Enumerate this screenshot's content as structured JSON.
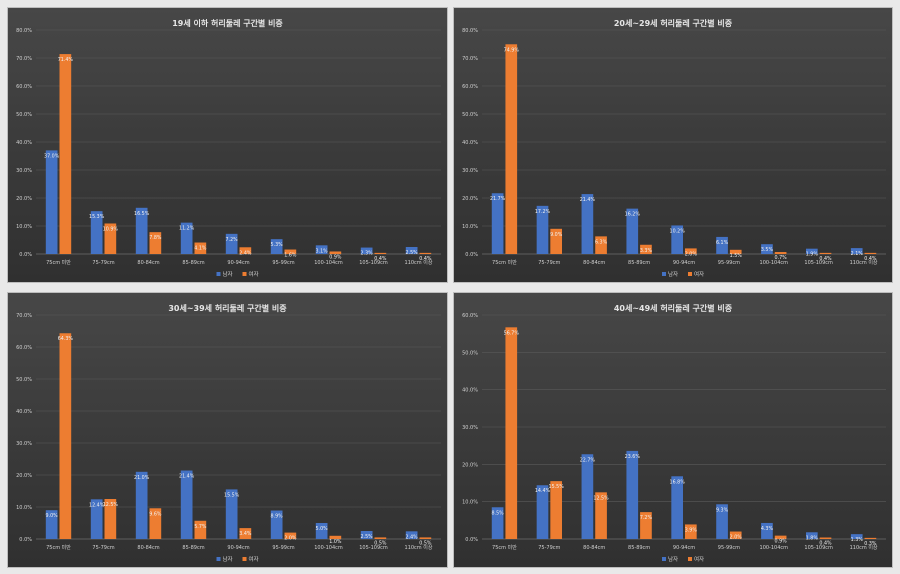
{
  "colors": {
    "male": "#4472c4",
    "female": "#ed7d31",
    "axis_text": "#d0d0d0",
    "grid": "#5a5a5a"
  },
  "chart_data": [
    {
      "type": "bar",
      "title": "19세 이하 허리둘레 구간별 비중",
      "categories": [
        "75cm 미만",
        "75-79cm",
        "80-84cm",
        "85-89cm",
        "90-94cm",
        "95-99cm",
        "100-104cm",
        "105-109cm",
        "110cm 이상"
      ],
      "series": [
        {
          "name": "남자",
          "values": [
            37.0,
            15.3,
            16.5,
            11.2,
            7.2,
            5.3,
            3.1,
            2.3,
            2.5
          ],
          "labels": [
            "37.0%",
            "15.3%",
            "16.5%",
            "11.2%",
            "7.2%",
            "5.3%",
            "3.1%",
            "2.3%",
            "2.5%"
          ]
        },
        {
          "name": "여자",
          "values": [
            71.4,
            10.9,
            7.8,
            4.1,
            2.4,
            1.6,
            0.9,
            0.4,
            0.4
          ],
          "labels": [
            "71.4%",
            "10.9%",
            "7.8%",
            "4.1%",
            "2.4%",
            "1.6%",
            "0.9%",
            "0.4%",
            "0.4%"
          ]
        }
      ],
      "yticks": [
        "0.0%",
        "10.0%",
        "20.0%",
        "30.0%",
        "40.0%",
        "50.0%",
        "60.0%",
        "70.0%",
        "80.0%"
      ],
      "ylim": [
        0,
        80
      ],
      "legend": "bottom-center"
    },
    {
      "type": "bar",
      "title": "20세~29세 허리둘레 구간별 비중",
      "categories": [
        "75cm 미만",
        "75-79cm",
        "80-84cm",
        "85-89cm",
        "90-94cm",
        "95-99cm",
        "100-104cm",
        "105-109cm",
        "110cm 이상"
      ],
      "series": [
        {
          "name": "남자",
          "values": [
            21.7,
            17.2,
            21.4,
            16.2,
            10.2,
            6.1,
            3.5,
            1.9,
            2.1
          ],
          "labels": [
            "21.7%",
            "17.2%",
            "21.4%",
            "16.2%",
            "10.2%",
            "6.1%",
            "3.5%",
            "1.9%",
            "2.1%"
          ]
        },
        {
          "name": "여자",
          "values": [
            74.9,
            9.0,
            6.3,
            3.3,
            2.0,
            1.5,
            0.7,
            0.4,
            0.4
          ],
          "labels": [
            "74.9%",
            "9.0%",
            "6.3%",
            "3.3%",
            "2.0%",
            "1.5%",
            "0.7%",
            "0.4%",
            "0.4%"
          ]
        }
      ],
      "yticks": [
        "0.0%",
        "10.0%",
        "20.0%",
        "30.0%",
        "40.0%",
        "50.0%",
        "60.0%",
        "70.0%",
        "80.0%"
      ],
      "ylim": [
        0,
        80
      ],
      "legend": "bottom-center"
    },
    {
      "type": "bar",
      "title": "30세~39세 허리둘레 구간별 비중",
      "categories": [
        "75cm 미만",
        "75-79cm",
        "80-84cm",
        "85-89cm",
        "90-94cm",
        "95-99cm",
        "100-104cm",
        "105-109cm",
        "110cm 이상"
      ],
      "series": [
        {
          "name": "남자",
          "values": [
            9.0,
            12.4,
            21.0,
            21.4,
            15.5,
            8.9,
            5.0,
            2.5,
            2.4
          ],
          "labels": [
            "9.0%",
            "12.4%",
            "21.0%",
            "21.4%",
            "15.5%",
            "8.9%",
            "5.0%",
            "2.5%",
            "2.4%"
          ]
        },
        {
          "name": "여자",
          "values": [
            64.3,
            12.5,
            9.6,
            5.7,
            3.4,
            2.0,
            1.0,
            0.5,
            0.5
          ],
          "labels": [
            "64.3%",
            "12.5%",
            "9.6%",
            "5.7%",
            "3.4%",
            "2.0%",
            "1.0%",
            "0.5%",
            "0.5%"
          ]
        }
      ],
      "yticks": [
        "0.0%",
        "10.0%",
        "20.0%",
        "30.0%",
        "40.0%",
        "50.0%",
        "60.0%",
        "70.0%"
      ],
      "ylim": [
        0,
        70
      ],
      "legend": "bottom-center"
    },
    {
      "type": "bar",
      "title": "40세~49세 허리둘레 구간별 비중",
      "categories": [
        "75cm 미만",
        "75-79cm",
        "80-84cm",
        "85-89cm",
        "90-94cm",
        "95-99cm",
        "100-104cm",
        "105-109cm",
        "110cm 이상"
      ],
      "series": [
        {
          "name": "남자",
          "values": [
            8.5,
            14.4,
            22.7,
            23.6,
            16.8,
            9.3,
            4.3,
            1.8,
            1.3
          ],
          "labels": [
            "8.5%",
            "14.4%",
            "22.7%",
            "23.6%",
            "16.8%",
            "9.3%",
            "4.3%",
            "1.8%",
            "1.3%"
          ]
        },
        {
          "name": "여자",
          "values": [
            56.7,
            15.5,
            12.5,
            7.2,
            3.9,
            2.0,
            0.9,
            0.4,
            0.3
          ],
          "labels": [
            "56.7%",
            "15.5%",
            "12.5%",
            "7.2%",
            "3.9%",
            "2.0%",
            "0.9%",
            "0.4%",
            "0.3%"
          ]
        }
      ],
      "yticks": [
        "0.0%",
        "10.0%",
        "20.0%",
        "30.0%",
        "40.0%",
        "50.0%",
        "60.0%"
      ],
      "ylim": [
        0,
        60
      ],
      "legend": "bottom-center"
    }
  ]
}
